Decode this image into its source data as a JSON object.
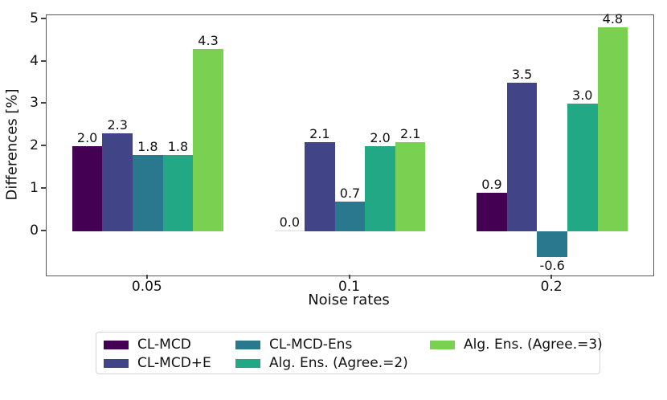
{
  "chart_data": {
    "type": "bar",
    "title": "",
    "xlabel": "Noise rates",
    "ylabel": "Differences [%]",
    "categories": [
      "0.05",
      "0.1",
      "0.2"
    ],
    "series": [
      {
        "name": "CL-MCD",
        "color": "#440154",
        "values": [
          2.0,
          0.0,
          0.9
        ]
      },
      {
        "name": "CL-MCD+E",
        "color": "#414487",
        "values": [
          2.3,
          2.1,
          3.5
        ]
      },
      {
        "name": "CL-MCD-Ens",
        "color": "#2a788e",
        "values": [
          1.8,
          0.7,
          -0.6
        ]
      },
      {
        "name": "Alg. Ens. (Agree.=2)",
        "color": "#22a884",
        "values": [
          1.8,
          2.0,
          3.0
        ]
      },
      {
        "name": "Alg. Ens. (Agree.=3)",
        "color": "#7ad151",
        "values": [
          4.3,
          2.1,
          4.8
        ]
      }
    ],
    "ylim": [
      -1.04,
      5.09
    ],
    "yticks": [
      0,
      1,
      2,
      3,
      4,
      5
    ],
    "bar_value_labels": true,
    "value_label_decimals": 1,
    "grid": false,
    "legend": {
      "position": "below-chart",
      "columns": 3,
      "entries": [
        "CL-MCD",
        "CL-MCD+E",
        "CL-MCD-Ens",
        "Alg. Ens. (Agree.=2)",
        "Alg. Ens. (Agree.=3)"
      ]
    }
  }
}
